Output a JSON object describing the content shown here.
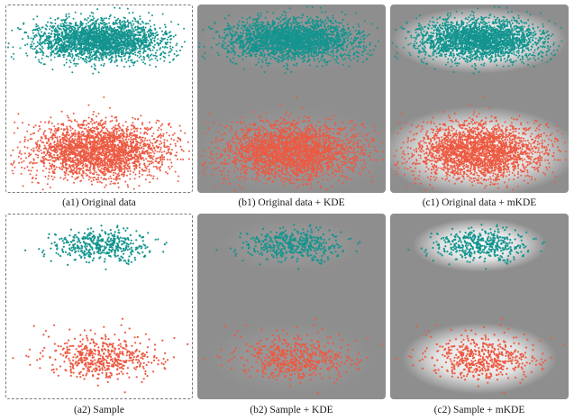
{
  "colors": {
    "cluster_top": "#14948f",
    "cluster_bottom": "#ec5a42",
    "kde_background": "#8e8e8e",
    "highlight": "#ffffff"
  },
  "panels": [
    {
      "caption": "(a1) Original data",
      "overlay": "none",
      "sample": "full"
    },
    {
      "caption": "(b1) Original data + KDE",
      "overlay": "kde",
      "sample": "full"
    },
    {
      "caption": "(c1) Original data + mKDE",
      "overlay": "mkde",
      "sample": "full"
    },
    {
      "caption": "(a2) Sample",
      "overlay": "none",
      "sample": "subset"
    },
    {
      "caption": "(b2) Sample + KDE",
      "overlay": "kde",
      "sample": "subset"
    },
    {
      "caption": "(c2) Sample + mKDE",
      "overlay": "mkde",
      "sample": "subset"
    }
  ]
}
